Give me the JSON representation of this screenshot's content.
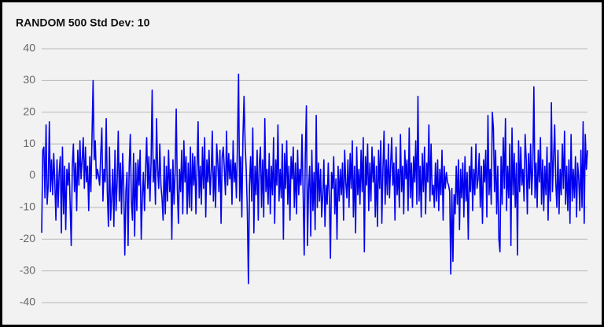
{
  "chart_data": {
    "type": "line",
    "title": "RANDOM 500 Std Dev: 10",
    "ylim": [
      -40,
      40
    ],
    "yticks": [
      -40,
      -30,
      -20,
      -10,
      0,
      10,
      20,
      30,
      40
    ],
    "grid": true,
    "color": "#0000ee",
    "values": [
      -18,
      8,
      9,
      -7,
      16,
      -9,
      -3,
      17,
      -5,
      5,
      -6,
      7,
      -2,
      -14,
      5,
      -10,
      1,
      6,
      -18,
      9,
      -12,
      3,
      -17,
      2,
      -3,
      4,
      -9,
      -22,
      3,
      10,
      -5,
      4,
      -11,
      8,
      -3,
      11,
      -1,
      5,
      12,
      -4,
      9,
      -2,
      3,
      -11,
      6,
      -5,
      12,
      30,
      5,
      11,
      -1,
      2,
      0,
      -3,
      7,
      15,
      -8,
      2,
      -2,
      18,
      -5,
      -16,
      9,
      -14,
      -7,
      2,
      -16,
      8,
      -11,
      -2,
      14,
      -8,
      4,
      -12,
      7,
      -3,
      -25,
      -5,
      1,
      -22,
      3,
      13,
      -8,
      -14,
      7,
      -19,
      4,
      -11,
      5,
      -3,
      8,
      -20,
      -7,
      1,
      -11,
      2,
      12,
      -4,
      6,
      -8,
      4,
      27,
      -2,
      5,
      -9,
      18,
      2,
      -4,
      10,
      -3,
      -7,
      -14,
      6,
      -12,
      3,
      -8,
      8,
      -5,
      2,
      -20,
      5,
      -9,
      1,
      21,
      -4,
      -15,
      2,
      -5,
      8,
      -12,
      11,
      -2,
      6,
      -12,
      4,
      -10,
      9,
      -11,
      7,
      -3,
      6,
      -12,
      2,
      17,
      -7,
      3,
      -9,
      9,
      -4,
      12,
      -13,
      5,
      -2,
      8,
      -6,
      1,
      14,
      -8,
      3,
      -10,
      10,
      4,
      -5,
      8,
      -15,
      6,
      9,
      2,
      -6,
      14,
      -3,
      7,
      -1,
      5,
      -9,
      11,
      -2,
      4,
      -7,
      10,
      32,
      -8,
      6,
      -13,
      12,
      25,
      10,
      2,
      -11,
      -34,
      -3,
      6,
      -8,
      15,
      -18,
      3,
      -6,
      8,
      -14,
      4,
      9,
      -10,
      5,
      -13,
      18,
      -5,
      2,
      -9,
      7,
      -12,
      3,
      -6,
      12,
      -15,
      5,
      -3,
      16,
      -8,
      2,
      -7,
      10,
      -20,
      7,
      -4,
      11,
      -9,
      3,
      -14,
      6,
      -1,
      9,
      -10,
      4,
      -12,
      8,
      -6,
      2,
      -3,
      13,
      -5,
      -25,
      6,
      22,
      -22,
      -4,
      3,
      -19,
      8,
      -11,
      1,
      -17,
      19,
      -10,
      4,
      -8,
      2,
      -13,
      -6,
      5,
      -16,
      -3,
      -9,
      4,
      -7,
      -26,
      1,
      -4,
      6,
      -12,
      -1,
      -20,
      3,
      -8,
      2,
      -6,
      4,
      -14,
      8,
      -2,
      -7,
      5,
      -10,
      7,
      -4,
      11,
      -13,
      3,
      -18,
      9,
      -6,
      2,
      -9,
      8,
      -5,
      12,
      -24,
      6,
      -3,
      10,
      -11,
      4,
      -8,
      9,
      -2,
      6,
      -13,
      3,
      -16,
      8,
      -4,
      11,
      -15,
      2,
      14,
      -9,
      5,
      -6,
      10,
      -7,
      3,
      12,
      -3,
      4,
      -14,
      9,
      -6,
      2,
      -10,
      13,
      -5,
      3,
      -12,
      8,
      -1,
      5,
      -11,
      15,
      -7,
      4,
      -10,
      6,
      -2,
      11,
      -9,
      25,
      -8,
      3,
      -13,
      7,
      -5,
      9,
      -12,
      4,
      -2,
      16,
      -8,
      10,
      -6,
      -3,
      -10,
      4,
      -8,
      5,
      -11,
      2,
      -6,
      8,
      -14,
      3,
      -4,
      1,
      -2,
      -3,
      -5,
      -31,
      -4,
      -27,
      -6,
      -12,
      3,
      -9,
      5,
      -17,
      2,
      -7,
      4,
      -13,
      6,
      -8,
      1,
      -20,
      3,
      -5,
      9,
      -11,
      2,
      -6,
      10,
      -4,
      -1,
      7,
      -10,
      3,
      -15,
      5,
      -2,
      8,
      -13,
      19,
      -6,
      2,
      -9,
      20,
      15,
      -5,
      8,
      -12,
      3,
      -20,
      -24,
      6,
      -9,
      12,
      -4,
      18,
      -11,
      3,
      -7,
      10,
      -22,
      15,
      -6,
      7,
      -10,
      4,
      -25,
      11,
      -5,
      9,
      -3,
      2,
      -8,
      13,
      5,
      -12,
      7,
      -4,
      10,
      -6,
      3,
      28,
      -7,
      4,
      -10,
      8,
      -2,
      12,
      -9,
      5,
      -11,
      3,
      -6,
      9,
      -14,
      4,
      -8,
      23,
      -5,
      6,
      16,
      -2,
      -10,
      8,
      -12,
      2,
      -6,
      10,
      -4,
      14,
      -9,
      3,
      -11,
      5,
      -15,
      13,
      -8,
      2,
      -7,
      6,
      -13,
      4,
      -1,
      -11,
      8,
      -10,
      17,
      -15,
      13,
      2,
      8
    ]
  }
}
